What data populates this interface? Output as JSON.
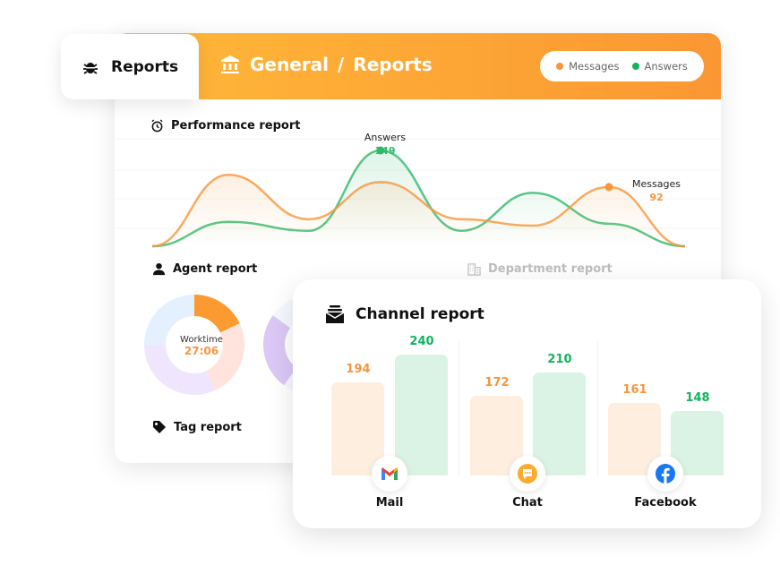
{
  "tab": {
    "label": "Reports",
    "icon": "bug-icon"
  },
  "breadcrumb": {
    "icon": "bank-icon",
    "parts": [
      "General",
      "/",
      "Reports"
    ]
  },
  "legend": {
    "items": [
      {
        "label": "Messages",
        "color": "#f7963a"
      },
      {
        "label": "Answers",
        "color": "#13b35d"
      }
    ]
  },
  "sections": {
    "performance": "Performance report",
    "agent": "Agent report",
    "department": "Department report",
    "tag": "Tag report"
  },
  "donut": {
    "label": "Worktime",
    "value": "27:06",
    "segments": [
      {
        "value": 18,
        "color": "#fb9a30"
      },
      {
        "value": 25,
        "color": "#ffe3dc"
      },
      {
        "value": 32,
        "color": "#efe6fd"
      },
      {
        "value": 25,
        "color": "#e4f0fd"
      }
    ]
  },
  "chart_data": [
    {
      "type": "area",
      "series": [
        {
          "name": "Messages",
          "color": "#f7963a",
          "values": [
            0,
            111,
            42,
            100,
            42,
            32,
            92,
            0
          ],
          "annotation": {
            "label": "Messages",
            "value": "92",
            "index": 6
          }
        },
        {
          "name": "Answers",
          "color": "#2fb96b",
          "values": [
            0,
            38,
            24,
            149,
            24,
            83,
            35,
            0
          ],
          "annotation": {
            "label": "Answers",
            "value": "149",
            "index": 3
          }
        }
      ],
      "grid": true
    },
    {
      "type": "bar",
      "title": "Channel report",
      "categories": [
        "Mail",
        "Chat",
        "Facebook"
      ],
      "series": [
        {
          "name": "Messages",
          "color": "#fdeee0",
          "label_color": "#f7963a",
          "values": [
            194,
            172,
            161
          ]
        },
        {
          "name": "Answers",
          "color": "#daf3e4",
          "label_color": "#13b35d",
          "values": [
            240,
            210,
            148
          ]
        }
      ]
    }
  ],
  "channel": {
    "title": "Channel report",
    "labels": [
      "Mail",
      "Chat",
      "Facebook"
    ],
    "icons": [
      "gmail-icon",
      "chat-icon",
      "facebook-icon"
    ],
    "v": [
      "194",
      "240",
      "172",
      "210",
      "161",
      "148"
    ]
  }
}
